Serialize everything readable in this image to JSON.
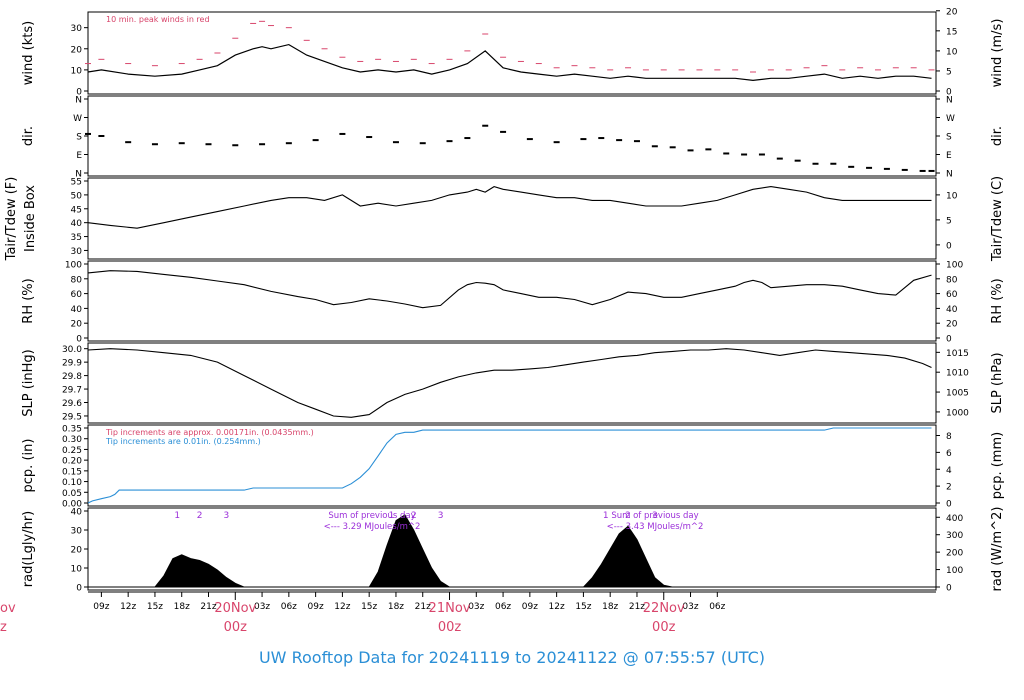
{
  "colors": {
    "accent_red": "#d8456b",
    "accent_blue": "#2b8fd6",
    "accent_purple": "#9b2fd9",
    "ink": "#000000"
  },
  "footer": {
    "title": "UW Rooftop Data for 20241119  to  20241122 @ 07:55:57  (UTC)"
  },
  "time_axis": {
    "hour_ticks": [
      "09z",
      "12z",
      "15z",
      "18z",
      "21z",
      "03z",
      "06z",
      "09z",
      "12z",
      "15z",
      "18z",
      "21z",
      "03z",
      "06z",
      "09z",
      "12z",
      "15z",
      "18z",
      "21z",
      "03z",
      "06z"
    ],
    "day_markers": [
      {
        "date": "20Nov",
        "time": "00z"
      },
      {
        "date": "21Nov",
        "time": "00z"
      },
      {
        "date": "22Nov",
        "time": "00z"
      }
    ],
    "left_cut_date": "ov",
    "left_cut_time": "z"
  },
  "chart_data": [
    {
      "type": "line",
      "panel": "wind",
      "ylabel_left": "wind (kts)",
      "ylabel_right": "wind (m/s)",
      "left_ticks": [
        0,
        10,
        20,
        30
      ],
      "right_ticks": [
        0,
        5,
        10,
        15,
        20
      ],
      "ylim": [
        0,
        36
      ],
      "annotation": "10 min. peak winds in red",
      "series": [
        {
          "name": "wind",
          "x": [
            7.5,
            9,
            12,
            15,
            18,
            20,
            22,
            24,
            26,
            27,
            28,
            30,
            32,
            34,
            36,
            38,
            40,
            42,
            44,
            46,
            48,
            50,
            52,
            54,
            56,
            58,
            60,
            62,
            64,
            66,
            68,
            70,
            72,
            74,
            76,
            78,
            80,
            82,
            84,
            86,
            88,
            90,
            92,
            94,
            96,
            98,
            100,
            102
          ],
          "values": [
            9,
            10,
            8,
            7,
            8,
            10,
            12,
            17,
            20,
            21,
            20,
            22,
            17,
            14,
            11,
            9,
            10,
            9,
            10,
            8,
            10,
            13,
            19,
            11,
            9,
            8,
            7,
            8,
            7,
            6,
            7,
            6,
            6,
            6,
            6,
            6,
            6,
            5,
            6,
            6,
            7,
            8,
            6,
            7,
            6,
            7,
            7,
            6
          ]
        },
        {
          "name": "peak",
          "x": [
            7.5,
            9,
            12,
            15,
            18,
            20,
            22,
            24,
            26,
            27,
            28,
            30,
            32,
            34,
            36,
            38,
            40,
            42,
            44,
            46,
            48,
            50,
            52,
            54,
            56,
            58,
            60,
            62,
            64,
            66,
            68,
            70,
            72,
            74,
            76,
            78,
            80,
            82,
            84,
            86,
            88,
            90,
            92,
            94,
            96,
            98,
            100,
            102
          ],
          "values": [
            13,
            15,
            13,
            12,
            13,
            15,
            18,
            25,
            32,
            33,
            31,
            30,
            24,
            20,
            16,
            14,
            15,
            14,
            15,
            13,
            15,
            19,
            27,
            16,
            14,
            13,
            11,
            12,
            11,
            10,
            11,
            10,
            10,
            10,
            10,
            10,
            10,
            9,
            10,
            10,
            11,
            12,
            10,
            11,
            10,
            11,
            11,
            10
          ]
        }
      ]
    },
    {
      "type": "scatter",
      "panel": "dir",
      "ylabel_left": "dir.",
      "ylabel_right": "dir.",
      "left_ticks": [
        "N",
        "E",
        "S",
        "W",
        "N"
      ],
      "right_ticks": [
        "N",
        "E",
        "S",
        "W",
        "N"
      ],
      "ylim": [
        0,
        360
      ],
      "x": [
        7.5,
        9,
        12,
        15,
        18,
        21,
        24,
        27,
        30,
        33,
        36,
        39,
        42,
        45,
        48,
        50,
        52,
        54,
        57,
        60,
        63,
        65,
        67,
        69,
        71,
        73,
        75,
        77,
        79,
        81,
        83,
        85,
        87,
        89,
        91,
        93,
        95,
        97,
        99,
        101,
        102
      ],
      "values": [
        190,
        180,
        150,
        140,
        145,
        140,
        135,
        140,
        145,
        160,
        190,
        175,
        150,
        145,
        155,
        170,
        230,
        200,
        165,
        150,
        165,
        170,
        160,
        155,
        130,
        125,
        110,
        115,
        95,
        90,
        90,
        70,
        60,
        45,
        45,
        30,
        25,
        20,
        15,
        10,
        10
      ]
    },
    {
      "type": "line",
      "panel": "temp",
      "ylabel_left": "Tair/Tdew (F)",
      "ylabel_left2": "Inside Box",
      "ylabel_right": "Tair/Tdew (C)",
      "left_ticks": [
        30,
        35,
        40,
        45,
        50,
        55
      ],
      "right_ticks": [
        0,
        5,
        10
      ],
      "ylim": [
        28,
        55
      ],
      "x": [
        7.5,
        10,
        13,
        16,
        19,
        22,
        25,
        28,
        30,
        32,
        34,
        36,
        38,
        40,
        42,
        44,
        46,
        48,
        50,
        51,
        52,
        53,
        54,
        56,
        58,
        60,
        62,
        64,
        66,
        68,
        70,
        72,
        74,
        76,
        78,
        80,
        82,
        84,
        86,
        88,
        90,
        92,
        94,
        96,
        98,
        100,
        102
      ],
      "values": [
        40,
        39,
        38,
        40,
        42,
        44,
        46,
        48,
        49,
        49,
        48,
        50,
        46,
        47,
        46,
        47,
        48,
        50,
        51,
        52,
        51,
        53,
        52,
        51,
        50,
        49,
        49,
        48,
        48,
        47,
        46,
        46,
        46,
        47,
        48,
        50,
        52,
        53,
        52,
        51,
        49,
        48,
        48,
        48,
        48,
        48,
        48
      ]
    },
    {
      "type": "line",
      "panel": "rh",
      "ylabel_left": "RH (%)",
      "ylabel_right": "RH (%)",
      "left_ticks": [
        0,
        20,
        40,
        60,
        80,
        100
      ],
      "right_ticks": [
        0,
        20,
        40,
        60,
        80,
        100
      ],
      "ylim": [
        0,
        100
      ],
      "x": [
        7.5,
        10,
        13,
        16,
        19,
        22,
        25,
        28,
        31,
        33,
        35,
        37,
        39,
        41,
        43,
        45,
        47,
        49,
        50,
        51,
        52,
        53,
        54,
        56,
        58,
        60,
        62,
        64,
        66,
        68,
        70,
        72,
        74,
        76,
        78,
        80,
        81,
        82,
        83,
        84,
        86,
        88,
        90,
        92,
        94,
        96,
        98,
        100,
        102
      ],
      "values": [
        88,
        91,
        90,
        86,
        82,
        77,
        72,
        63,
        56,
        52,
        45,
        48,
        53,
        50,
        46,
        41,
        44,
        65,
        72,
        75,
        74,
        72,
        65,
        60,
        55,
        55,
        52,
        45,
        52,
        62,
        60,
        55,
        55,
        60,
        65,
        70,
        75,
        78,
        75,
        68,
        70,
        72,
        72,
        70,
        65,
        60,
        58,
        78,
        85
      ]
    },
    {
      "type": "line",
      "panel": "slp",
      "ylabel_left": "SLP (inHg)",
      "ylabel_right": "SLP (hPa)",
      "left_ticks": [
        "29.5",
        "29.6",
        "29.7",
        "29.8",
        "29.9",
        "30.0"
      ],
      "right_ticks": [
        1000,
        1005,
        1010,
        1015
      ],
      "ylim": [
        29.47,
        30.02
      ],
      "x": [
        7.5,
        10,
        13,
        16,
        19,
        22,
        25,
        28,
        31,
        33,
        35,
        37,
        39,
        41,
        43,
        45,
        47,
        49,
        51,
        53,
        55,
        57,
        59,
        61,
        63,
        65,
        67,
        69,
        71,
        73,
        75,
        77,
        79,
        81,
        83,
        85,
        87,
        89,
        91,
        93,
        95,
        97,
        99,
        101,
        102
      ],
      "values": [
        29.99,
        30.0,
        29.99,
        29.97,
        29.95,
        29.9,
        29.8,
        29.7,
        29.6,
        29.55,
        29.5,
        29.49,
        29.51,
        29.6,
        29.66,
        29.7,
        29.75,
        29.79,
        29.82,
        29.84,
        29.84,
        29.85,
        29.86,
        29.88,
        29.9,
        29.92,
        29.94,
        29.95,
        29.97,
        29.98,
        29.99,
        29.99,
        30.0,
        29.99,
        29.97,
        29.95,
        29.97,
        29.99,
        29.98,
        29.97,
        29.96,
        29.95,
        29.93,
        29.89,
        29.86
      ]
    },
    {
      "type": "line",
      "panel": "pcp",
      "ylabel_left": "pcp. (in)",
      "ylabel_right": "pcp. (mm)",
      "left_ticks": [
        "0.00",
        "0.05",
        "0.10",
        "0.15",
        "0.20",
        "0.25",
        "0.30",
        "0.35"
      ],
      "right_ticks": [
        0,
        2,
        4,
        6,
        8
      ],
      "ylim": [
        0,
        0.35
      ],
      "annotation_red": "Tip increments are approx. 0.00171in. (0.0435mm.)",
      "annotation_blue": "Tip increments are 0.01in. (0.254mm.)",
      "x": [
        7.5,
        8,
        9,
        10,
        10.5,
        11,
        25,
        26,
        36,
        37,
        38,
        39,
        40,
        41,
        42,
        43,
        44,
        45,
        46,
        90,
        91,
        102
      ],
      "values": [
        0.0,
        0.01,
        0.02,
        0.03,
        0.04,
        0.06,
        0.06,
        0.07,
        0.07,
        0.09,
        0.12,
        0.16,
        0.22,
        0.28,
        0.32,
        0.33,
        0.33,
        0.34,
        0.34,
        0.34,
        0.35,
        0.35
      ]
    },
    {
      "type": "area",
      "panel": "rad",
      "ylabel_left": "rad(Lgly/hr)",
      "ylabel_right": "rad (W/m^2)",
      "left_ticks": [
        0,
        10,
        20,
        30,
        40
      ],
      "right_ticks": [
        0,
        100,
        200,
        300,
        400
      ],
      "ylim": [
        0,
        40
      ],
      "hour_labels": [
        "1",
        "2",
        "3"
      ],
      "day_summaries": [
        {
          "label": "Sum of previous day",
          "value": "<--- 3.29 MJoules/m^2"
        },
        {
          "label": "Sum of previous day",
          "value": "<--- 3.43 MJoules/m^2"
        }
      ],
      "x": [
        15,
        16,
        17,
        18,
        19,
        20,
        21,
        22,
        23,
        24,
        25,
        39,
        40,
        41,
        42,
        43,
        44,
        45,
        46,
        47,
        48,
        49,
        63,
        64,
        65,
        66,
        67,
        68,
        69,
        70,
        71,
        72,
        73
      ],
      "values": [
        0,
        6,
        15,
        17,
        15,
        14,
        12,
        9,
        5,
        2,
        0,
        0,
        8,
        22,
        35,
        38,
        30,
        20,
        10,
        3,
        0,
        0,
        0,
        5,
        12,
        20,
        28,
        32,
        25,
        15,
        5,
        1,
        0
      ]
    }
  ]
}
